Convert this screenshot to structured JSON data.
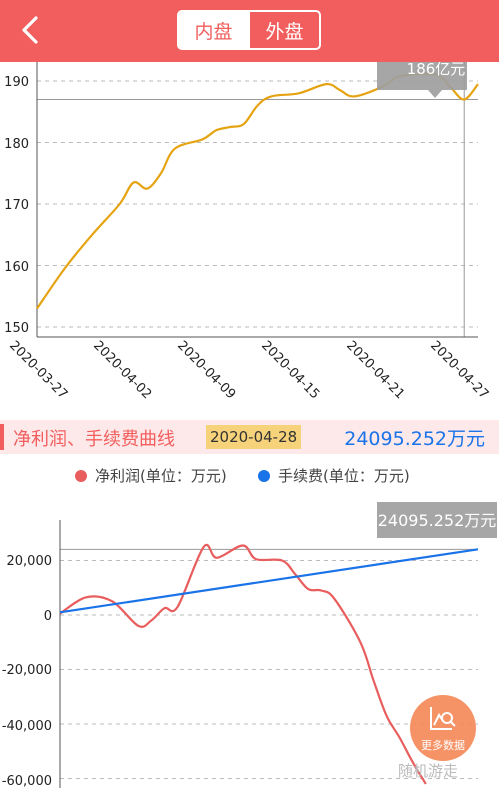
{
  "header": {
    "tabs": [
      "内盘",
      "外盘"
    ],
    "active_tab": 0
  },
  "chart_top": {
    "yticks": [
      "190",
      "180",
      "170",
      "160",
      "150"
    ],
    "xticks": [
      "2020-03-27",
      "2020-04-02",
      "2020-04-09",
      "2020-04-15",
      "2020-04-21",
      "2020-04-27"
    ],
    "tooltip": "186亿元"
  },
  "section": {
    "title": "净利润、手续费曲线",
    "date": "2020-04-28",
    "value": "24095.252万元"
  },
  "legend": [
    {
      "label": "净利润(单位：万元)",
      "color": "#e85d5d"
    },
    {
      "label": "手续费(单位：万元)",
      "color": "#1a73e8"
    }
  ],
  "chart_bottom": {
    "yticks": [
      "20,000",
      "0",
      "-20,000",
      "-40,000",
      "-60,000"
    ],
    "tooltip": "24095.252万元"
  },
  "fab": {
    "label": "更多数据"
  },
  "watermark": "随机游走",
  "chart_data": [
    {
      "type": "line",
      "line_color": "#e6a311",
      "ylim": [
        149,
        193
      ],
      "x_range": [
        "2020-03-27",
        "2020-04-28"
      ],
      "points": [
        [
          "2020-03-27",
          153
        ],
        [
          "2020-03-29",
          159.5
        ],
        [
          "2020-03-31",
          165
        ],
        [
          "2020-04-02",
          170
        ],
        [
          "2020-04-03",
          173.5
        ],
        [
          "2020-04-04",
          172.5
        ],
        [
          "2020-04-05",
          175
        ],
        [
          "2020-04-06",
          179
        ],
        [
          "2020-04-08",
          180.5
        ],
        [
          "2020-04-09",
          182
        ],
        [
          "2020-04-10",
          182.5
        ],
        [
          "2020-04-11",
          183
        ],
        [
          "2020-04-12",
          186
        ],
        [
          "2020-04-13",
          187.5
        ],
        [
          "2020-04-15",
          188
        ],
        [
          "2020-04-17",
          189.5
        ],
        [
          "2020-04-18",
          188.5
        ],
        [
          "2020-04-19",
          187.5
        ],
        [
          "2020-04-21",
          189
        ],
        [
          "2020-04-22",
          190.5
        ],
        [
          "2020-04-23",
          191
        ],
        [
          "2020-04-25",
          191
        ],
        [
          "2020-04-26",
          189
        ],
        [
          "2020-04-27",
          187
        ],
        [
          "2020-04-28",
          189.5
        ]
      ],
      "reference_y": 187
    },
    {
      "type": "line",
      "ylim": [
        -62000,
        30000
      ],
      "x_range": [
        "2020-03-27",
        "2020-04-28"
      ],
      "series": [
        {
          "name": "净利润(单位：万元)",
          "color": "#e85d5d",
          "points": [
            [
              "2020-03-27",
              500
            ],
            [
              "2020-03-29",
              6500
            ],
            [
              "2020-03-31",
              5000
            ],
            [
              "2020-04-02",
              -4000
            ],
            [
              "2020-04-03",
              -2000
            ],
            [
              "2020-04-04",
              2500
            ],
            [
              "2020-04-05",
              3000
            ],
            [
              "2020-04-07",
              25000
            ],
            [
              "2020-04-08",
              21000
            ],
            [
              "2020-04-10",
              25500
            ],
            [
              "2020-04-11",
              20500
            ],
            [
              "2020-04-13",
              20000
            ],
            [
              "2020-04-14",
              15000
            ],
            [
              "2020-04-15",
              9500
            ],
            [
              "2020-04-16",
              9000
            ],
            [
              "2020-04-17",
              6000
            ],
            [
              "2020-04-19",
              -10000
            ],
            [
              "2020-04-20",
              -24000
            ],
            [
              "2020-04-21",
              -37000
            ],
            [
              "2020-04-22",
              -45000
            ],
            [
              "2020-04-23",
              -54000
            ],
            [
              "2020-04-24",
              -62000
            ]
          ]
        },
        {
          "name": "手续费(单位：万元)",
          "color": "#1a73e8",
          "points": [
            [
              "2020-03-27",
              1000
            ],
            [
              "2020-04-28",
              24095.252
            ]
          ]
        }
      ],
      "reference_y": 24095.252
    }
  ]
}
